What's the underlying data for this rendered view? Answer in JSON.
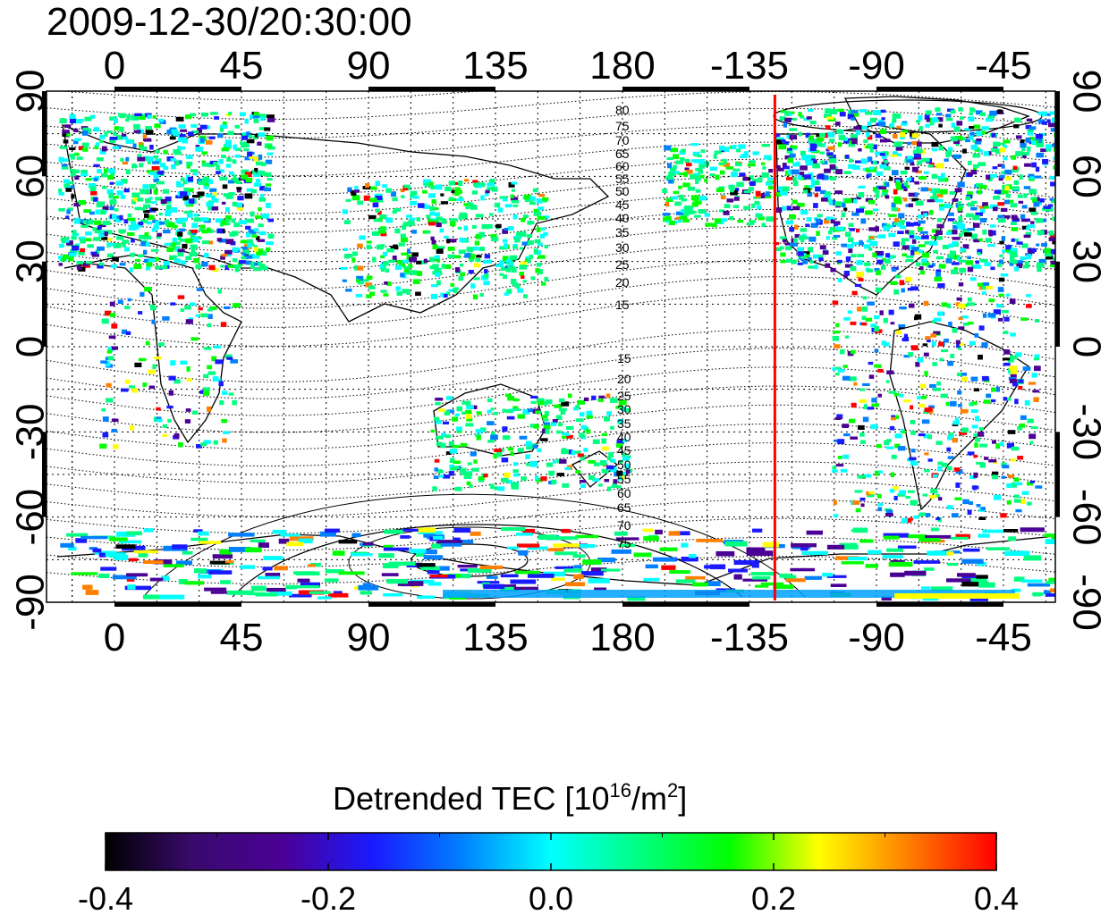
{
  "title": "2009-12-30/20:30:00",
  "map": {
    "lon_ticks": [
      "0",
      "45",
      "90",
      "135",
      "180",
      "-135",
      "-90",
      "-45"
    ],
    "lat_ticks": [
      "90",
      "60",
      "30",
      "0",
      "-30",
      "-60",
      "-90"
    ],
    "red_line_longitude": -126,
    "contour_labels_north": [
      "80",
      "75",
      "70",
      "65",
      "60",
      "55",
      "50",
      "45",
      "40",
      "35",
      "30",
      "25",
      "20",
      "15"
    ],
    "contour_labels_south": [
      "15",
      "20",
      "25",
      "30",
      "35",
      "40",
      "45",
      "50",
      "55",
      "60",
      "65",
      "70",
      "75"
    ]
  },
  "colorbar": {
    "title_main": "Detrended TEC  [10",
    "title_exp": "16",
    "title_unit": "/m",
    "title_unit_exp": "2",
    "title_end": "]",
    "ticks": [
      "-0.4",
      "-0.2",
      "0.0",
      "0.2",
      "0.4"
    ],
    "colors": [
      "#000000",
      "#3a0a6e",
      "#4b0096",
      "#1a1aff",
      "#0080ff",
      "#00ffff",
      "#00ff80",
      "#00ff00",
      "#ffff00",
      "#ff8000",
      "#ff0000"
    ]
  }
}
